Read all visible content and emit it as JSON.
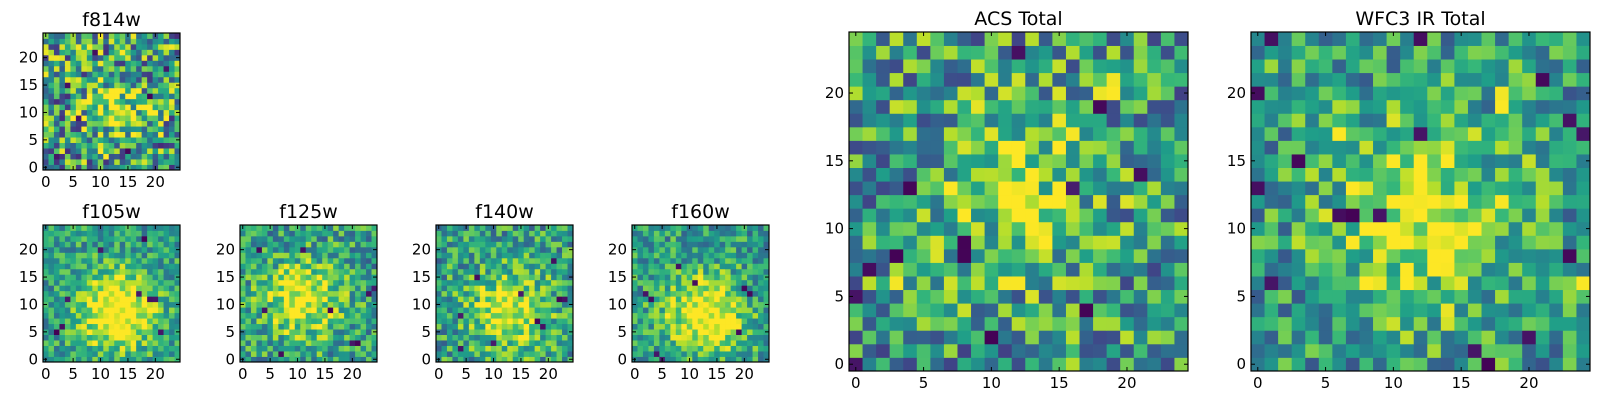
{
  "chart_data": [
    {
      "type": "heatmap",
      "id": "f814w",
      "title": "f814w",
      "xlabel": "",
      "ylabel": "",
      "xlim": [
        0,
        25
      ],
      "ylim": [
        0,
        25
      ],
      "grid_size": 25,
      "xticks": [
        0,
        5,
        10,
        15,
        20
      ],
      "yticks": [
        0,
        5,
        10,
        15,
        20
      ],
      "colormap": "viridis",
      "seed": 11,
      "noise": 0.55,
      "peak": {
        "x": 13,
        "y": 11,
        "amplitude": 0.35,
        "sigma": 4.0
      },
      "dark_cells": [
        [
          2,
          2
        ],
        [
          6,
          9
        ],
        [
          19,
          13
        ],
        [
          22,
          18
        ],
        [
          9,
          21
        ],
        [
          15,
          3
        ],
        [
          4,
          15
        ]
      ]
    },
    {
      "type": "heatmap",
      "id": "f105w",
      "title": "f105w",
      "xlabel": "",
      "ylabel": "",
      "xlim": [
        0,
        25
      ],
      "ylim": [
        0,
        25
      ],
      "grid_size": 25,
      "xticks": [
        0,
        5,
        10,
        15,
        20
      ],
      "yticks": [
        0,
        5,
        10,
        15,
        20
      ],
      "colormap": "viridis",
      "seed": 23,
      "noise": 0.3,
      "peak": {
        "x": 13,
        "y": 9,
        "amplitude": 0.6,
        "sigma": 5.0
      },
      "dark_cells": [
        [
          2,
          5
        ],
        [
          3,
          6
        ],
        [
          10,
          20
        ],
        [
          19,
          11
        ],
        [
          20,
          11
        ],
        [
          17,
          12
        ],
        [
          18,
          22
        ],
        [
          4,
          11
        ],
        [
          21,
          5
        ]
      ]
    },
    {
      "type": "heatmap",
      "id": "f125w",
      "title": "f125w",
      "xlabel": "",
      "ylabel": "",
      "xlim": [
        0,
        25
      ],
      "ylim": [
        0,
        25
      ],
      "grid_size": 25,
      "xticks": [
        0,
        5,
        10,
        15,
        20
      ],
      "yticks": [
        0,
        5,
        10,
        15,
        20
      ],
      "colormap": "viridis",
      "seed": 37,
      "noise": 0.35,
      "peak": {
        "x": 11,
        "y": 11,
        "amplitude": 0.45,
        "sigma": 5.0
      },
      "dark_cells": [
        [
          3,
          20
        ],
        [
          23,
          12
        ],
        [
          24,
          13
        ],
        [
          20,
          3
        ],
        [
          21,
          3
        ],
        [
          7,
          1
        ],
        [
          4,
          9
        ],
        [
          16,
          9
        ],
        [
          11,
          20
        ]
      ]
    },
    {
      "type": "heatmap",
      "id": "f140w",
      "title": "f140w",
      "xlabel": "",
      "ylabel": "",
      "xlim": [
        0,
        25
      ],
      "ylim": [
        0,
        25
      ],
      "grid_size": 25,
      "xticks": [
        0,
        5,
        10,
        15,
        20
      ],
      "yticks": [
        0,
        5,
        10,
        15,
        20
      ],
      "colormap": "viridis",
      "seed": 41,
      "noise": 0.35,
      "peak": {
        "x": 13,
        "y": 9,
        "amplitude": 0.45,
        "sigma": 5.0
      },
      "dark_cells": [
        [
          7,
          15
        ],
        [
          22,
          11
        ],
        [
          23,
          11
        ],
        [
          4,
          2
        ],
        [
          21,
          18
        ],
        [
          4,
          8
        ],
        [
          10,
          3
        ],
        [
          15,
          12
        ],
        [
          18,
          7
        ],
        [
          19,
          6
        ]
      ]
    },
    {
      "type": "heatmap",
      "id": "f160w",
      "title": "f160w",
      "xlabel": "",
      "ylabel": "",
      "xlim": [
        0,
        25
      ],
      "ylim": [
        0,
        25
      ],
      "grid_size": 25,
      "xticks": [
        0,
        5,
        10,
        15,
        20
      ],
      "yticks": [
        0,
        5,
        10,
        15,
        20
      ],
      "colormap": "viridis",
      "seed": 53,
      "noise": 0.32,
      "peak": {
        "x": 13,
        "y": 8,
        "amplitude": 0.55,
        "sigma": 5.0
      },
      "dark_cells": [
        [
          4,
          1
        ],
        [
          5,
          0
        ],
        [
          19,
          5
        ],
        [
          3,
          11
        ],
        [
          2,
          12
        ],
        [
          8,
          17
        ],
        [
          11,
          14
        ],
        [
          20,
          13
        ],
        [
          21,
          12
        ]
      ]
    },
    {
      "type": "heatmap",
      "id": "acs-total",
      "title": "ACS Total",
      "xlabel": "",
      "ylabel": "",
      "xlim": [
        0,
        25
      ],
      "ylim": [
        0,
        25
      ],
      "grid_size": 25,
      "xticks": [
        0,
        5,
        10,
        15,
        20
      ],
      "yticks": [
        0,
        5,
        10,
        15,
        20
      ],
      "colormap": "viridis",
      "seed": 67,
      "noise": 0.45,
      "peak": {
        "x": 12,
        "y": 13,
        "amplitude": 0.35,
        "sigma": 4.0
      },
      "bright_cells": [
        [
          18,
          20
        ],
        [
          19,
          20
        ],
        [
          19,
          21
        ],
        [
          13,
          13
        ],
        [
          12,
          13
        ],
        [
          11,
          6
        ],
        [
          12,
          6
        ],
        [
          3,
          6
        ]
      ],
      "dark_cells": [
        [
          4,
          13
        ],
        [
          16,
          13
        ],
        [
          21,
          14
        ],
        [
          0,
          5
        ],
        [
          8,
          8
        ],
        [
          8,
          9
        ],
        [
          3,
          8
        ],
        [
          1,
          7
        ],
        [
          17,
          4
        ],
        [
          10,
          2
        ],
        [
          12,
          23
        ],
        [
          0,
          0
        ],
        [
          18,
          19
        ]
      ]
    },
    {
      "type": "heatmap",
      "id": "wfc3-ir-total",
      "title": "WFC3 IR Total",
      "xlabel": "",
      "ylabel": "",
      "xlim": [
        0,
        25
      ],
      "ylim": [
        0,
        25
      ],
      "grid_size": 25,
      "xticks": [
        0,
        5,
        10,
        15,
        20
      ],
      "yticks": [
        0,
        5,
        10,
        15,
        20
      ],
      "colormap": "viridis",
      "seed": 79,
      "noise": 0.38,
      "peak": {
        "x": 12,
        "y": 11,
        "amplitude": 0.45,
        "sigma": 4.5
      },
      "bright_cells": [
        [
          18,
          19
        ],
        [
          18,
          20
        ],
        [
          12,
          13
        ],
        [
          12,
          12
        ],
        [
          11,
          7
        ],
        [
          14,
          7
        ],
        [
          6,
          17
        ],
        [
          24,
          6
        ]
      ],
      "dark_cells": [
        [
          0,
          13
        ],
        [
          1,
          6
        ],
        [
          3,
          15
        ],
        [
          0,
          20
        ],
        [
          21,
          21
        ],
        [
          24,
          17
        ],
        [
          23,
          18
        ],
        [
          16,
          1
        ],
        [
          17,
          0
        ],
        [
          12,
          24
        ],
        [
          7,
          11
        ],
        [
          6,
          11
        ],
        [
          9,
          11
        ],
        [
          20,
          2
        ],
        [
          23,
          8
        ],
        [
          12,
          17
        ],
        [
          1,
          24
        ]
      ]
    }
  ]
}
